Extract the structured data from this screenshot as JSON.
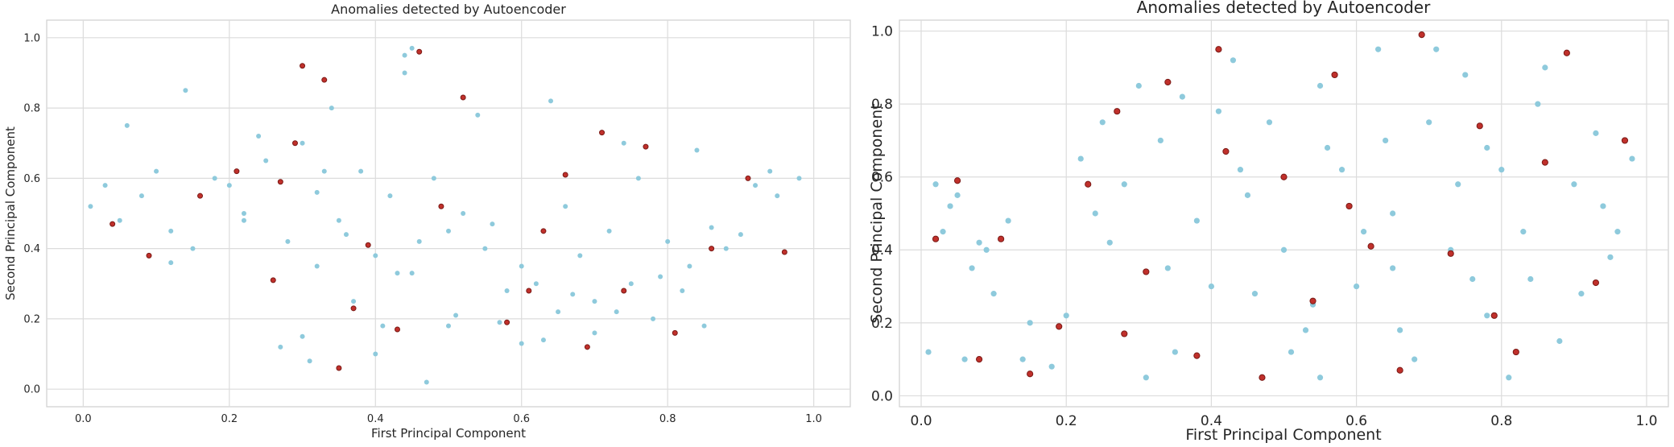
{
  "chart_data": [
    {
      "type": "scatter",
      "title": "Anomalies detected by Autoencoder",
      "xlabel": "First Principal Component",
      "ylabel": "Second Principal Component",
      "xlim": [
        -0.05,
        1.05
      ],
      "ylim": [
        -0.05,
        1.05
      ],
      "xticks": [
        "0.0",
        "0.2",
        "0.4",
        "0.6",
        "0.8",
        "1.0"
      ],
      "yticks": [
        "0.0",
        "0.2",
        "0.4",
        "0.6",
        "0.8",
        "1.0"
      ],
      "grid": true,
      "colors": {
        "normal": "#8ecadc",
        "anomaly": "#c0302b"
      },
      "series": [
        {
          "role": "normal",
          "x": [
            0.01,
            0.03,
            0.05,
            0.08,
            0.1,
            0.12,
            0.15,
            0.18,
            0.2,
            0.22,
            0.25,
            0.28,
            0.3,
            0.32,
            0.35,
            0.38,
            0.4,
            0.42,
            0.45,
            0.48,
            0.5,
            0.52,
            0.55,
            0.58,
            0.6,
            0.62,
            0.65,
            0.68,
            0.7,
            0.72,
            0.75,
            0.78,
            0.8,
            0.82,
            0.85,
            0.88,
            0.9,
            0.92,
            0.95,
            0.98,
            0.06,
            0.14,
            0.24,
            0.34,
            0.44,
            0.54,
            0.64,
            0.74,
            0.84,
            0.94,
            0.12,
            0.22,
            0.32,
            0.36,
            0.46,
            0.56,
            0.66,
            0.76,
            0.86,
            0.3,
            0.4,
            0.5,
            0.6,
            0.7,
            0.47,
            0.45,
            0.44,
            0.31,
            0.27,
            0.33,
            0.37,
            0.41,
            0.43,
            0.51,
            0.57,
            0.63,
            0.67,
            0.73,
            0.79,
            0.83
          ],
          "y": [
            0.52,
            0.58,
            0.48,
            0.55,
            0.62,
            0.45,
            0.4,
            0.6,
            0.58,
            0.5,
            0.65,
            0.42,
            0.7,
            0.35,
            0.48,
            0.62,
            0.38,
            0.55,
            0.33,
            0.6,
            0.45,
            0.5,
            0.4,
            0.28,
            0.35,
            0.3,
            0.22,
            0.38,
            0.25,
            0.45,
            0.3,
            0.2,
            0.42,
            0.28,
            0.18,
            0.4,
            0.44,
            0.58,
            0.55,
            0.6,
            0.75,
            0.85,
            0.72,
            0.8,
            0.9,
            0.78,
            0.82,
            0.7,
            0.68,
            0.62,
            0.36,
            0.48,
            0.56,
            0.44,
            0.42,
            0.47,
            0.52,
            0.6,
            0.46,
            0.15,
            0.1,
            0.18,
            0.13,
            0.16,
            0.02,
            0.97,
            0.95,
            0.08,
            0.12,
            0.62,
            0.25,
            0.18,
            0.33,
            0.21,
            0.19,
            0.14,
            0.27,
            0.22,
            0.32,
            0.35
          ]
        },
        {
          "role": "anomaly",
          "x": [
            0.04,
            0.09,
            0.16,
            0.21,
            0.26,
            0.3,
            0.33,
            0.39,
            0.43,
            0.46,
            0.52,
            0.58,
            0.63,
            0.66,
            0.71,
            0.74,
            0.77,
            0.81,
            0.86,
            0.91,
            0.96,
            0.29,
            0.37,
            0.49,
            0.61,
            0.69,
            0.27,
            0.35
          ],
          "y": [
            0.47,
            0.38,
            0.55,
            0.62,
            0.31,
            0.92,
            0.88,
            0.41,
            0.17,
            0.96,
            0.83,
            0.19,
            0.45,
            0.61,
            0.73,
            0.28,
            0.69,
            0.16,
            0.4,
            0.6,
            0.39,
            0.7,
            0.23,
            0.52,
            0.28,
            0.12,
            0.59,
            0.06
          ]
        }
      ]
    },
    {
      "type": "scatter",
      "title": "Anomalies detected by Autoencoder",
      "xlabel": "First Principal Component",
      "ylabel": "Second Principal Component",
      "xlim": [
        -0.03,
        1.03
      ],
      "ylim": [
        -0.03,
        1.03
      ],
      "xticks": [
        "0.0",
        "0.2",
        "0.4",
        "0.6",
        "0.8",
        "1.0"
      ],
      "yticks": [
        "0.0",
        "0.2",
        "0.4",
        "0.6",
        "0.8",
        "1.0"
      ],
      "grid": true,
      "colors": {
        "normal": "#8ecadc",
        "anomaly": "#c0302b"
      },
      "series": [
        {
          "role": "normal",
          "x": [
            0.01,
            0.03,
            0.05,
            0.07,
            0.1,
            0.12,
            0.15,
            0.18,
            0.2,
            0.22,
            0.25,
            0.28,
            0.3,
            0.33,
            0.35,
            0.38,
            0.4,
            0.43,
            0.45,
            0.48,
            0.5,
            0.53,
            0.55,
            0.58,
            0.6,
            0.63,
            0.65,
            0.68,
            0.7,
            0.73,
            0.75,
            0.78,
            0.8,
            0.83,
            0.85,
            0.88,
            0.9,
            0.93,
            0.95,
            0.98,
            0.04,
            0.08,
            0.14,
            0.24,
            0.34,
            0.44,
            0.54,
            0.64,
            0.74,
            0.84,
            0.94,
            0.26,
            0.36,
            0.46,
            0.56,
            0.66,
            0.76,
            0.86,
            0.96,
            0.31,
            0.41,
            0.51,
            0.61,
            0.71,
            0.81,
            0.91,
            0.55,
            0.65,
            0.78,
            0.02,
            0.06,
            0.09
          ],
          "y": [
            0.12,
            0.45,
            0.55,
            0.35,
            0.28,
            0.48,
            0.2,
            0.08,
            0.22,
            0.65,
            0.75,
            0.58,
            0.85,
            0.7,
            0.12,
            0.48,
            0.3,
            0.92,
            0.55,
            0.75,
            0.4,
            0.18,
            0.85,
            0.62,
            0.3,
            0.95,
            0.5,
            0.1,
            0.75,
            0.4,
            0.88,
            0.22,
            0.62,
            0.45,
            0.8,
            0.15,
            0.58,
            0.72,
            0.38,
            0.65,
            0.52,
            0.42,
            0.1,
            0.5,
            0.35,
            0.62,
            0.25,
            0.7,
            0.58,
            0.32,
            0.52,
            0.42,
            0.82,
            0.28,
            0.68,
            0.18,
            0.32,
            0.9,
            0.45,
            0.05,
            0.78,
            0.12,
            0.45,
            0.95,
            0.05,
            0.28,
            0.05,
            0.35,
            0.68,
            0.58,
            0.1,
            0.4
          ]
        },
        {
          "role": "anomaly",
          "x": [
            0.02,
            0.05,
            0.08,
            0.11,
            0.15,
            0.19,
            0.23,
            0.27,
            0.31,
            0.34,
            0.38,
            0.42,
            0.47,
            0.5,
            0.54,
            0.57,
            0.62,
            0.66,
            0.69,
            0.73,
            0.77,
            0.82,
            0.86,
            0.89,
            0.93,
            0.97,
            0.28,
            0.41,
            0.59,
            0.79
          ],
          "y": [
            0.43,
            0.59,
            0.1,
            0.43,
            0.06,
            0.19,
            0.58,
            0.78,
            0.34,
            0.86,
            0.11,
            0.67,
            0.05,
            0.6,
            0.26,
            0.88,
            0.41,
            0.07,
            0.99,
            0.39,
            0.74,
            0.12,
            0.64,
            0.94,
            0.31,
            0.7,
            0.17,
            0.95,
            0.52,
            0.22
          ]
        }
      ]
    }
  ]
}
